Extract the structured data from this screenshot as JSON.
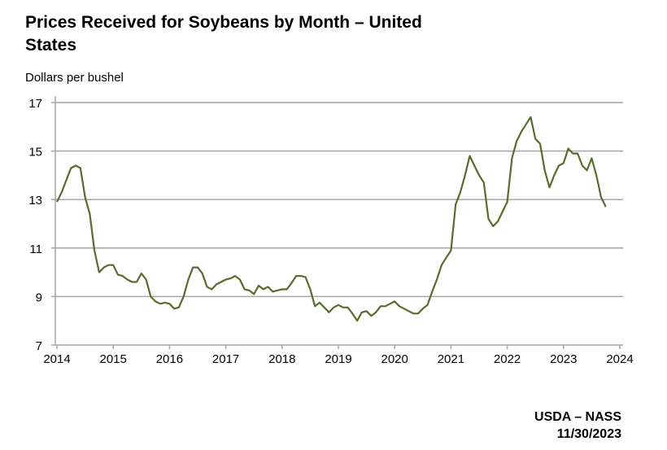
{
  "chart_data": {
    "type": "line",
    "title": "Prices Received for Soybeans by Month – United States",
    "ylabel": "Dollars per bushel",
    "xlabel": "",
    "ylim": [
      7,
      17
    ],
    "xlim": [
      2014,
      2024
    ],
    "yticks": [
      "7",
      "9",
      "11",
      "13",
      "15",
      "17"
    ],
    "xticks": [
      "2014",
      "2015",
      "2016",
      "2017",
      "2018",
      "2019",
      "2020",
      "2021",
      "2022",
      "2023",
      "2024"
    ],
    "grid": "horizontal",
    "line_color": "#5a6b2e",
    "start": "2014-01",
    "frequency": "monthly",
    "series": [
      {
        "name": "Soybeans",
        "values": [
          12.9,
          13.3,
          13.8,
          14.3,
          14.4,
          14.3,
          13.1,
          12.4,
          10.9,
          10.0,
          10.2,
          10.3,
          10.3,
          9.9,
          9.85,
          9.7,
          9.6,
          9.6,
          9.95,
          9.7,
          9.0,
          8.8,
          8.7,
          8.75,
          8.7,
          8.5,
          8.55,
          9.0,
          9.7,
          10.2,
          10.2,
          9.95,
          9.4,
          9.3,
          9.5,
          9.6,
          9.7,
          9.75,
          9.85,
          9.7,
          9.3,
          9.25,
          9.1,
          9.45,
          9.3,
          9.4,
          9.2,
          9.25,
          9.3,
          9.3,
          9.55,
          9.85,
          9.85,
          9.8,
          9.3,
          8.6,
          8.75,
          8.55,
          8.35,
          8.55,
          8.65,
          8.55,
          8.55,
          8.3,
          8.0,
          8.35,
          8.4,
          8.2,
          8.35,
          8.6,
          8.6,
          8.7,
          8.8,
          8.6,
          8.5,
          8.4,
          8.3,
          8.3,
          8.5,
          8.65,
          9.2,
          9.7,
          10.3,
          10.6,
          10.9,
          12.8,
          13.3,
          14.0,
          14.8,
          14.4,
          14.0,
          13.7,
          12.2,
          11.9,
          12.1,
          12.5,
          12.9,
          14.7,
          15.4,
          15.8,
          16.1,
          16.4,
          15.5,
          15.3,
          14.2,
          13.5,
          14.0,
          14.4,
          14.5,
          15.1,
          14.9,
          14.9,
          14.4,
          14.2,
          14.7,
          14.0,
          13.1,
          12.7
        ]
      }
    ]
  },
  "source": {
    "agency": "USDA – NASS",
    "date": "11/30/2023"
  }
}
